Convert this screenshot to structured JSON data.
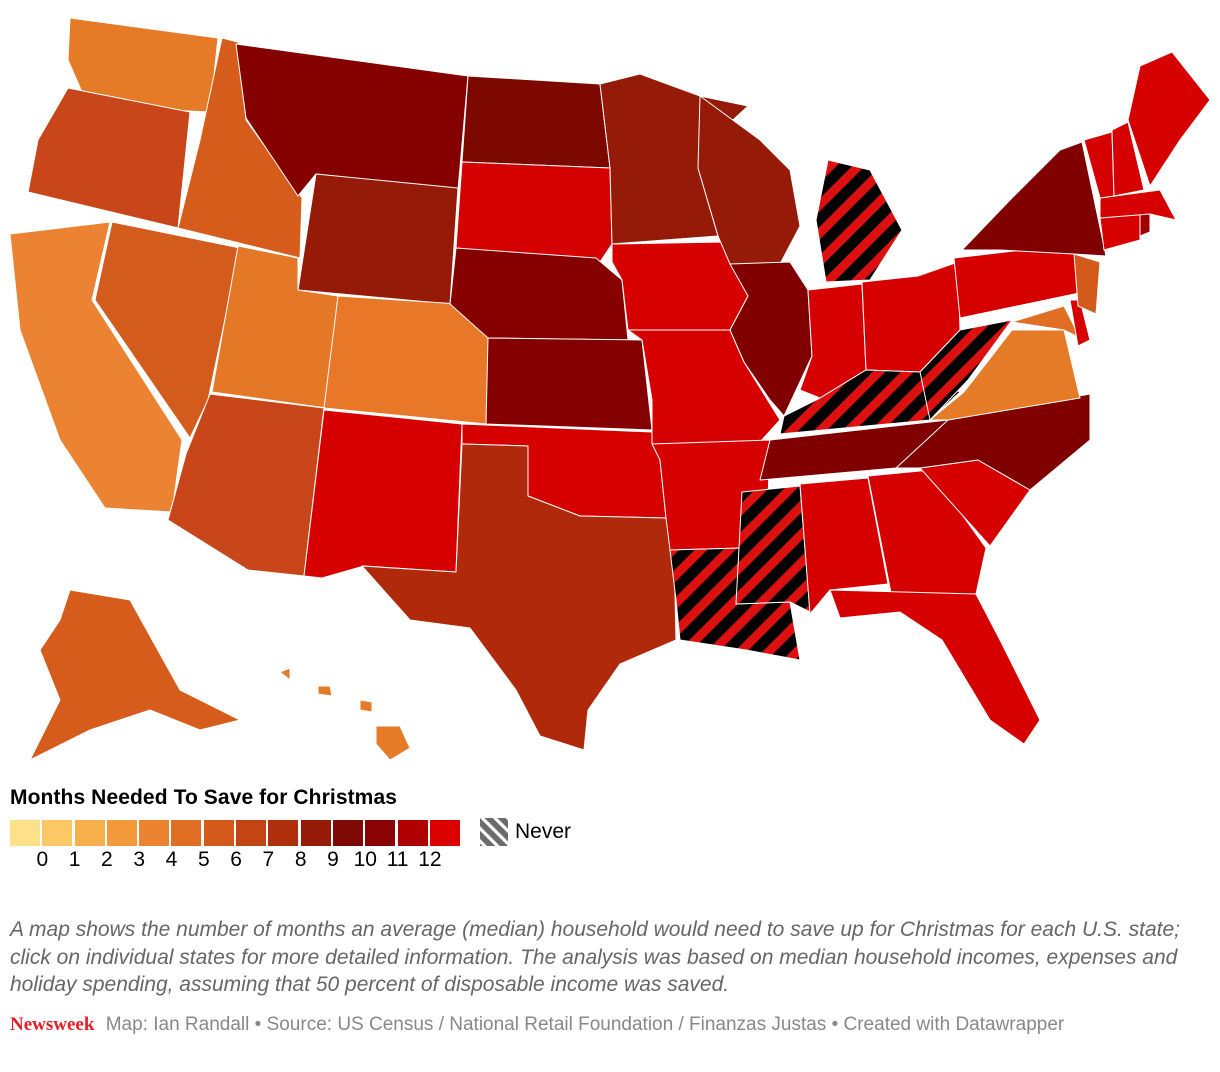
{
  "legend": {
    "title": "Months Needed To Save for Christmas",
    "colors": [
      "#fde08a",
      "#fbc865",
      "#f8b04c",
      "#f29a3a",
      "#eb8330",
      "#e06f24",
      "#d45a1b",
      "#c44514",
      "#b0300d",
      "#951a08",
      "#7f0a05",
      "#8a0204",
      "#b00000",
      "#dd0000"
    ],
    "tick_labels": [
      "0",
      "1",
      "2",
      "3",
      "4",
      "5",
      "6",
      "7",
      "8",
      "9",
      "10",
      "11",
      "12"
    ],
    "never_label": "Never"
  },
  "map": {
    "title": "",
    "never_fill": "#000000",
    "never_stripe": "#dd1010",
    "states": [
      {
        "id": "WA",
        "name": "Washington",
        "fill": "#e57a27"
      },
      {
        "id": "OR",
        "name": "Oregon",
        "fill": "#c9461a"
      },
      {
        "id": "CA",
        "name": "California",
        "fill": "#eb8333"
      },
      {
        "id": "NV",
        "name": "Nevada",
        "fill": "#d35c1d"
      },
      {
        "id": "ID",
        "name": "Idaho",
        "fill": "#d65c1b"
      },
      {
        "id": "MT",
        "name": "Montana",
        "fill": "#850100"
      },
      {
        "id": "WY",
        "name": "Wyoming",
        "fill": "#951a08"
      },
      {
        "id": "UT",
        "name": "Utah",
        "fill": "#e57827"
      },
      {
        "id": "CO",
        "name": "Colorado",
        "fill": "#e87828"
      },
      {
        "id": "AZ",
        "name": "Arizona",
        "fill": "#c8461a"
      },
      {
        "id": "NM",
        "name": "New Mexico",
        "fill": "#d60000"
      },
      {
        "id": "ND",
        "name": "North Dakota",
        "fill": "#7d0800"
      },
      {
        "id": "SD",
        "name": "South Dakota",
        "fill": "#d50000"
      },
      {
        "id": "NE",
        "name": "Nebraska",
        "fill": "#870000"
      },
      {
        "id": "KS",
        "name": "Kansas",
        "fill": "#850000"
      },
      {
        "id": "OK",
        "name": "Oklahoma",
        "fill": "#d60000"
      },
      {
        "id": "TX",
        "name": "Texas",
        "fill": "#b0290a"
      },
      {
        "id": "MN",
        "name": "Minnesota",
        "fill": "#951a08"
      },
      {
        "id": "IA",
        "name": "Iowa",
        "fill": "#d60000"
      },
      {
        "id": "MO",
        "name": "Missouri",
        "fill": "#d60000"
      },
      {
        "id": "AR",
        "name": "Arkansas",
        "fill": "#d60000"
      },
      {
        "id": "LA",
        "name": "Louisiana",
        "fill": "never"
      },
      {
        "id": "WI",
        "name": "Wisconsin",
        "fill": "#951a08"
      },
      {
        "id": "IL",
        "name": "Illinois",
        "fill": "#800000"
      },
      {
        "id": "MI",
        "name": "Michigan",
        "fill": "never"
      },
      {
        "id": "IN",
        "name": "Indiana",
        "fill": "#d60000"
      },
      {
        "id": "OH",
        "name": "Ohio",
        "fill": "#d60000"
      },
      {
        "id": "KY",
        "name": "Kentucky",
        "fill": "never"
      },
      {
        "id": "TN",
        "name": "Tennessee",
        "fill": "#800000"
      },
      {
        "id": "MS",
        "name": "Mississippi",
        "fill": "never"
      },
      {
        "id": "AL",
        "name": "Alabama",
        "fill": "#d60000"
      },
      {
        "id": "GA",
        "name": "Georgia",
        "fill": "#d60000"
      },
      {
        "id": "FL",
        "name": "Florida",
        "fill": "#d60000"
      },
      {
        "id": "SC",
        "name": "South Carolina",
        "fill": "#d60000"
      },
      {
        "id": "NC",
        "name": "North Carolina",
        "fill": "#800000"
      },
      {
        "id": "VA",
        "name": "Virginia",
        "fill": "#e57a27"
      },
      {
        "id": "WV",
        "name": "West Virginia",
        "fill": "never"
      },
      {
        "id": "MD",
        "name": "Maryland",
        "fill": "#e06f24"
      },
      {
        "id": "DE",
        "name": "Delaware",
        "fill": "#d60000"
      },
      {
        "id": "PA",
        "name": "Pennsylvania",
        "fill": "#d60000"
      },
      {
        "id": "NJ",
        "name": "New Jersey",
        "fill": "#d45a1b"
      },
      {
        "id": "NY",
        "name": "New York",
        "fill": "#800000"
      },
      {
        "id": "CT",
        "name": "Connecticut",
        "fill": "#d60000"
      },
      {
        "id": "RI",
        "name": "Rhode Island",
        "fill": "#a00000"
      },
      {
        "id": "MA",
        "name": "Massachusetts",
        "fill": "#d60000"
      },
      {
        "id": "VT",
        "name": "Vermont",
        "fill": "#d60000"
      },
      {
        "id": "NH",
        "name": "New Hampshire",
        "fill": "#d60000"
      },
      {
        "id": "ME",
        "name": "Maine",
        "fill": "#d60000"
      },
      {
        "id": "AK",
        "name": "Alaska",
        "fill": "#d65c1b"
      },
      {
        "id": "HI",
        "name": "Hawaii",
        "fill": "#e57a27"
      }
    ]
  },
  "description": "A map shows the number of months an average (median) household would need to save up for Christmas for each U.S. state; click on individual states for more detailed information. The analysis was based on median household incomes, expenses and holiday spending, assuming that 50 percent of disposable income was saved.",
  "footer": {
    "brand": "Newsweek",
    "credits": "Map: Ian Randall • Source: US Census / National Retail Foundation / Finanzas Justas • Created with Datawrapper"
  }
}
